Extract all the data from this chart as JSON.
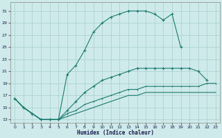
{
  "xlabel": "Humidex (Indice chaleur)",
  "x_ticks": [
    0,
    1,
    2,
    3,
    4,
    5,
    6,
    7,
    8,
    9,
    10,
    11,
    12,
    13,
    14,
    15,
    16,
    17,
    18,
    19,
    20,
    21,
    22,
    23
  ],
  "y_ticks": [
    13,
    15,
    17,
    19,
    21,
    23,
    25,
    27,
    29,
    31
  ],
  "xlim": [
    -0.5,
    23.5
  ],
  "ylim": [
    12.5,
    32.5
  ],
  "bg_color": "#ceeaea",
  "grid_color": "#aacece",
  "line_color": "#1a7a6e",
  "line1_x": [
    0,
    1,
    2,
    3,
    4,
    5,
    6,
    7,
    8,
    9,
    10,
    11,
    12,
    13,
    14,
    15,
    16,
    17,
    18,
    19
  ],
  "line1_y": [
    16.5,
    15.0,
    14.0,
    13.0,
    13.0,
    13.0,
    20.5,
    22.0,
    24.5,
    27.5,
    29.0,
    30.0,
    30.5,
    31.0,
    31.0,
    31.0,
    30.5,
    29.5,
    30.5,
    25.0
  ],
  "line2_x": [
    0,
    1,
    2,
    3,
    4,
    5,
    6,
    7,
    8,
    9,
    10,
    11,
    12,
    13,
    14,
    15,
    16,
    17,
    18,
    19,
    20,
    21,
    22
  ],
  "line2_y": [
    16.5,
    15.0,
    14.0,
    13.0,
    13.0,
    13.0,
    14.5,
    16.0,
    17.5,
    18.5,
    19.5,
    20.0,
    20.5,
    21.0,
    21.5,
    21.5,
    21.5,
    21.5,
    21.5,
    21.5,
    21.5,
    21.0,
    19.5
  ],
  "line3_x": [
    0,
    1,
    2,
    3,
    4,
    5,
    6,
    7,
    8,
    9,
    10,
    11,
    12,
    13,
    14,
    15,
    16,
    17,
    18,
    19,
    20,
    21,
    22,
    23
  ],
  "line3_y": [
    16.5,
    15.0,
    14.0,
    13.0,
    13.0,
    13.0,
    14.0,
    14.5,
    15.5,
    16.0,
    16.5,
    17.0,
    17.5,
    18.0,
    18.0,
    18.5,
    18.5,
    18.5,
    18.5,
    18.5,
    18.5,
    18.5,
    19.0,
    19.0
  ],
  "line4_x": [
    0,
    1,
    2,
    3,
    4,
    5,
    6,
    7,
    8,
    9,
    10,
    11,
    12,
    13,
    14,
    15,
    16,
    17,
    18,
    19,
    20,
    21,
    22,
    23
  ],
  "line4_y": [
    16.5,
    15.0,
    14.0,
    13.0,
    13.0,
    13.0,
    13.5,
    14.0,
    14.5,
    15.0,
    15.5,
    16.0,
    16.5,
    17.0,
    17.0,
    17.5,
    17.5,
    17.5,
    17.5,
    17.5,
    17.5,
    17.5,
    17.5,
    17.5
  ]
}
